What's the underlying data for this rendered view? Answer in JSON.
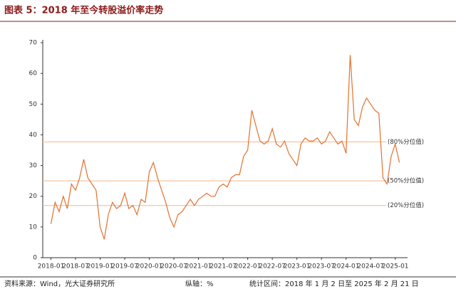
{
  "chart_data": {
    "type": "line",
    "title": "图表 5：2018 年至今转股溢价率走势",
    "source": "资料来源：Wind，光大证券研究所",
    "axis_note": "纵轴：%",
    "period": "统计区间：2018 年 1 月 2 日至 2025 年 2 月 21 日",
    "x": [
      "2018-01",
      "2018-02",
      "2018-03",
      "2018-04",
      "2018-05",
      "2018-06",
      "2018-07",
      "2018-08",
      "2018-09",
      "2018-10",
      "2018-11",
      "2018-12",
      "2019-01",
      "2019-02",
      "2019-03",
      "2019-04",
      "2019-05",
      "2019-06",
      "2019-07",
      "2019-08",
      "2019-09",
      "2019-10",
      "2019-11",
      "2019-12",
      "2020-01",
      "2020-02",
      "2020-03",
      "2020-04",
      "2020-05",
      "2020-06",
      "2020-07",
      "2020-08",
      "2020-09",
      "2020-10",
      "2020-11",
      "2020-12",
      "2021-01",
      "2021-02",
      "2021-03",
      "2021-04",
      "2021-05",
      "2021-06",
      "2021-07",
      "2021-08",
      "2021-09",
      "2021-10",
      "2021-11",
      "2021-12",
      "2022-01",
      "2022-02",
      "2022-03",
      "2022-04",
      "2022-05",
      "2022-06",
      "2022-07",
      "2022-08",
      "2022-09",
      "2022-10",
      "2022-11",
      "2022-12",
      "2023-01",
      "2023-02",
      "2023-03",
      "2023-04",
      "2023-05",
      "2023-06",
      "2023-07",
      "2023-08",
      "2023-09",
      "2023-10",
      "2023-11",
      "2023-12",
      "2024-01",
      "2024-02",
      "2024-03",
      "2024-04",
      "2024-05",
      "2024-06",
      "2024-07",
      "2024-08",
      "2024-09",
      "2024-10",
      "2024-11",
      "2024-12",
      "2025-01",
      "2025-02"
    ],
    "series": [
      {
        "name": "转股溢价率",
        "color": "#e2712f",
        "values": [
          11,
          18,
          15,
          20,
          16,
          24,
          22,
          26,
          32,
          26,
          24,
          22,
          10,
          6,
          14,
          18,
          16,
          17,
          21,
          16,
          17,
          14,
          19,
          18,
          28,
          31,
          26,
          22,
          18,
          13,
          10,
          14,
          15,
          17,
          19,
          17,
          19,
          20,
          21,
          20,
          20,
          23,
          24,
          23,
          26,
          27,
          27,
          33,
          35,
          48,
          43,
          38,
          37,
          38,
          42,
          37,
          36,
          38,
          34,
          32,
          30,
          37,
          39,
          38,
          38,
          39,
          37,
          38,
          41,
          39,
          37,
          38,
          34,
          66,
          45,
          43,
          49,
          52,
          50,
          48,
          47,
          26,
          24,
          33,
          37,
          31
        ]
      }
    ],
    "reference_lines": [
      {
        "label": "(80%分位值)",
        "value": 37.7
      },
      {
        "label": "(50%分位值)",
        "value": 25
      },
      {
        "label": "(20%分位值)",
        "value": 17
      }
    ],
    "reference_color": "#f4c6a2",
    "xlim": [
      "2017-11",
      "2025-04"
    ],
    "xticks": [
      "2018-01",
      "2018-07",
      "2019-01",
      "2019-07",
      "2020-01",
      "2020-07",
      "2021-01",
      "2021-07",
      "2022-01",
      "2022-07",
      "2023-01",
      "2023-07",
      "2024-01",
      "2024-07",
      "2025-01"
    ],
    "ylim": [
      0,
      70
    ],
    "yticks": [
      0,
      10,
      20,
      30,
      40,
      50,
      60,
      70
    ]
  }
}
